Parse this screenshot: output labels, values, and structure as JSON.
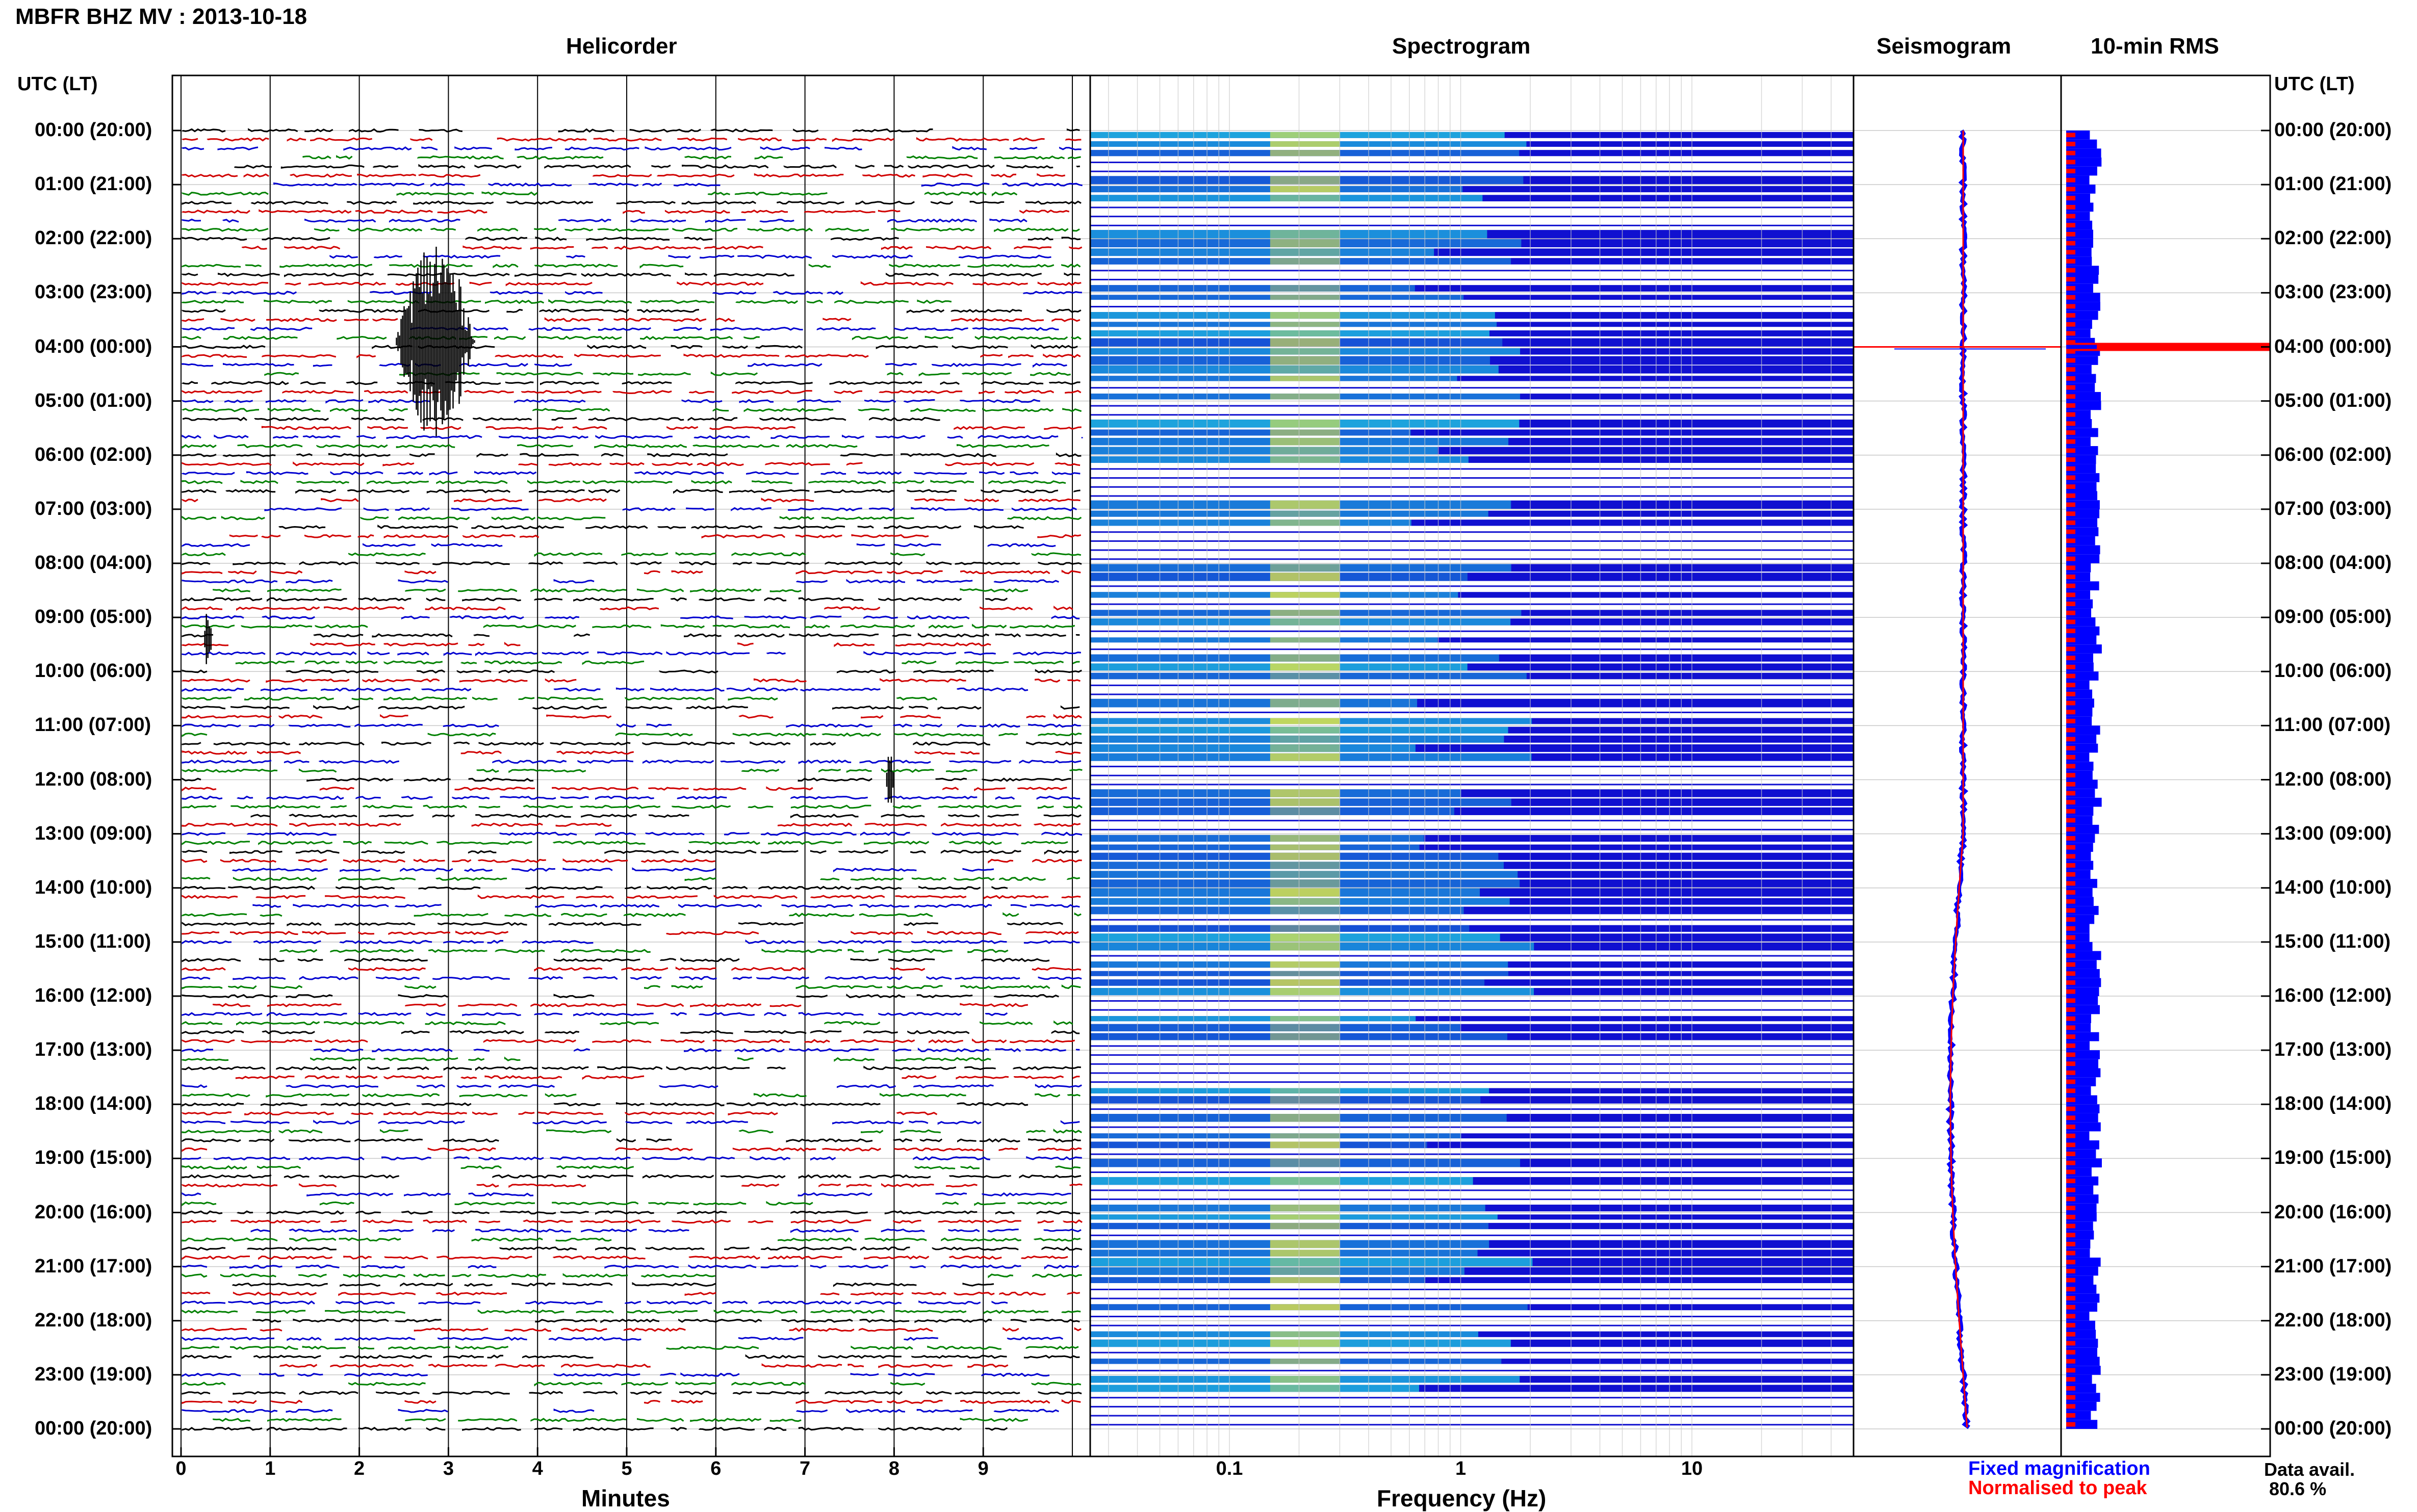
{
  "station_title": "MBFR BHZ MV : 2013-10-18",
  "panels": {
    "helicorder": "Helicorder",
    "spectrogram": "Spectrogram",
    "seismogram": "Seismogram",
    "rms": "10-min RMS"
  },
  "axis_header_left": "UTC (LT)",
  "axis_header_right": "UTC (LT)",
  "hour_labels": [
    "00:00 (20:00)",
    "01:00 (21:00)",
    "02:00 (22:00)",
    "03:00 (23:00)",
    "04:00 (00:00)",
    "05:00 (01:00)",
    "06:00 (02:00)",
    "07:00 (03:00)",
    "08:00 (04:00)",
    "09:00 (05:00)",
    "10:00 (06:00)",
    "11:00 (07:00)",
    "12:00 (08:00)",
    "13:00 (09:00)",
    "14:00 (10:00)",
    "15:00 (11:00)",
    "16:00 (12:00)",
    "17:00 (13:00)",
    "18:00 (14:00)",
    "19:00 (15:00)",
    "20:00 (16:00)",
    "21:00 (17:00)",
    "22:00 (18:00)",
    "23:00 (19:00)",
    "00:00 (20:00)"
  ],
  "helicorder_xlabel": "Minutes",
  "helicorder_ticks": [
    "0",
    "1",
    "2",
    "3",
    "4",
    "5",
    "6",
    "7",
    "8",
    "9"
  ],
  "spectrogram_xlabel": "Frequency (Hz)",
  "spectrogram_ticks": [
    "0.1",
    "1",
    "10"
  ],
  "legend": {
    "fixed": "Fixed magnification",
    "normalised": "Normalised to peak",
    "fixed_color": "#0000ff",
    "normalised_color": "#ff0000"
  },
  "data_avail_label": "Data avail.",
  "data_avail_value": "80.6 %",
  "colors": {
    "trace_colors": [
      "#000000",
      "#d00000",
      "#0000d0",
      "#008000"
    ],
    "spectrogram_low": "#1010d0",
    "spectrogram_mid": "#20c8e0",
    "spectrogram_high": "#e8e840"
  },
  "chart_data": {
    "type": "line",
    "helicorder": {
      "x_unit": "Minutes",
      "xlim": [
        0,
        10
      ],
      "events": [
        {
          "hour": 3.9,
          "minute_start": 2.4,
          "minute_end": 3.3,
          "description": "large event"
        },
        {
          "hour": 9.4,
          "minute_start": 0.25,
          "minute_end": 0.35,
          "description": "spike"
        },
        {
          "hour": 12.0,
          "minute_start": 7.9,
          "minute_end": 8.0,
          "description": "burst"
        }
      ]
    },
    "spectrogram": {
      "x_scale": "log",
      "xlim": [
        0.025,
        50
      ],
      "peak_band_hz": [
        0.15,
        0.3
      ]
    },
    "seismogram": {
      "series": [
        {
          "name": "Fixed magnification",
          "color": "#0000ff"
        },
        {
          "name": "Normalised to peak",
          "color": "#ff0000"
        }
      ],
      "spike_hour": 4.0
    },
    "rms": {
      "peak_hour": 4.0,
      "data_available_percent": 80.6
    }
  }
}
